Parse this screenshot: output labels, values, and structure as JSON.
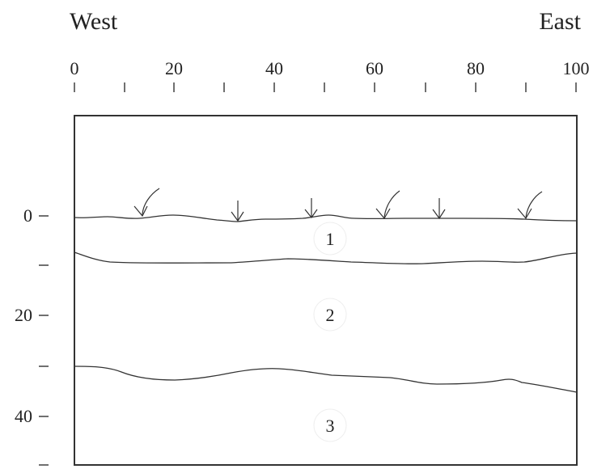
{
  "labels": {
    "west": "West",
    "east": "East"
  },
  "top_axis": {
    "labels": [
      "0",
      "20",
      "40",
      "60",
      "80",
      "100"
    ]
  },
  "left_axis": {
    "labels": [
      "0",
      "20",
      "40"
    ]
  },
  "layers": [
    "1",
    "2",
    "3"
  ]
}
